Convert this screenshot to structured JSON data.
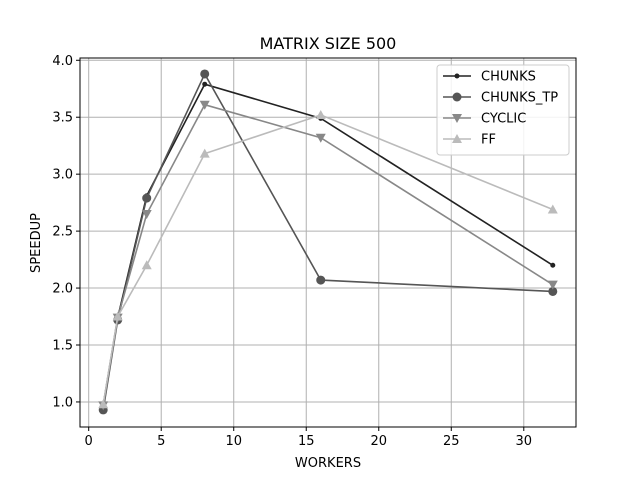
{
  "chart_data": {
    "type": "line",
    "title": "MATRIX SIZE 500",
    "xlabel": "WORKERS",
    "ylabel": "SPEEDUP",
    "xlim": [
      -0.6,
      33.6
    ],
    "ylim": [
      0.78,
      4.02
    ],
    "xticks": [
      0,
      5,
      10,
      15,
      20,
      25,
      30
    ],
    "yticks": [
      1.0,
      1.5,
      2.0,
      2.5,
      3.0,
      3.5,
      4.0
    ],
    "grid": true,
    "legend_position": "top-right",
    "series": [
      {
        "name": "CHUNKS",
        "marker": "dot",
        "color": "#222222",
        "x": [
          1,
          2,
          4,
          8,
          16,
          32
        ],
        "values": [
          0.97,
          1.74,
          2.81,
          3.79,
          3.49,
          2.2
        ]
      },
      {
        "name": "CHUNKS_TP",
        "marker": "circle",
        "color": "#555555",
        "x": [
          1,
          2,
          4,
          8,
          16,
          32
        ],
        "values": [
          0.93,
          1.72,
          2.79,
          3.88,
          2.07,
          1.97
        ]
      },
      {
        "name": "CYCLIC",
        "marker": "triangle-down",
        "color": "#888888",
        "x": [
          1,
          2,
          4,
          8,
          16,
          32
        ],
        "values": [
          0.97,
          1.74,
          2.65,
          3.61,
          3.32,
          2.03
        ]
      },
      {
        "name": "FF",
        "marker": "triangle-up",
        "color": "#bbbbbb",
        "x": [
          1,
          2,
          4,
          8,
          16,
          32
        ],
        "values": [
          0.98,
          1.75,
          2.2,
          3.18,
          3.52,
          2.69
        ]
      }
    ]
  }
}
